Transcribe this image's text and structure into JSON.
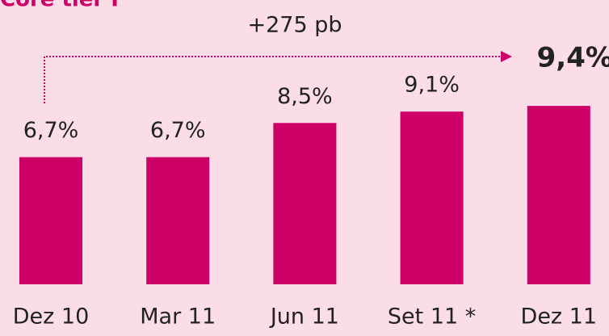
{
  "chart_data": {
    "type": "bar",
    "title": "Core tier I",
    "categories": [
      "Dez 10",
      "Mar 11",
      "Jun 11",
      "Set 11 *",
      "Dez 11"
    ],
    "values": [
      6.7,
      6.7,
      8.5,
      9.1,
      9.4
    ],
    "value_labels": [
      "6,7%",
      "6,7%",
      "8,5%",
      "9,1%",
      "9,4%"
    ],
    "color": "#cc0066",
    "annotation": "+275 pb"
  }
}
